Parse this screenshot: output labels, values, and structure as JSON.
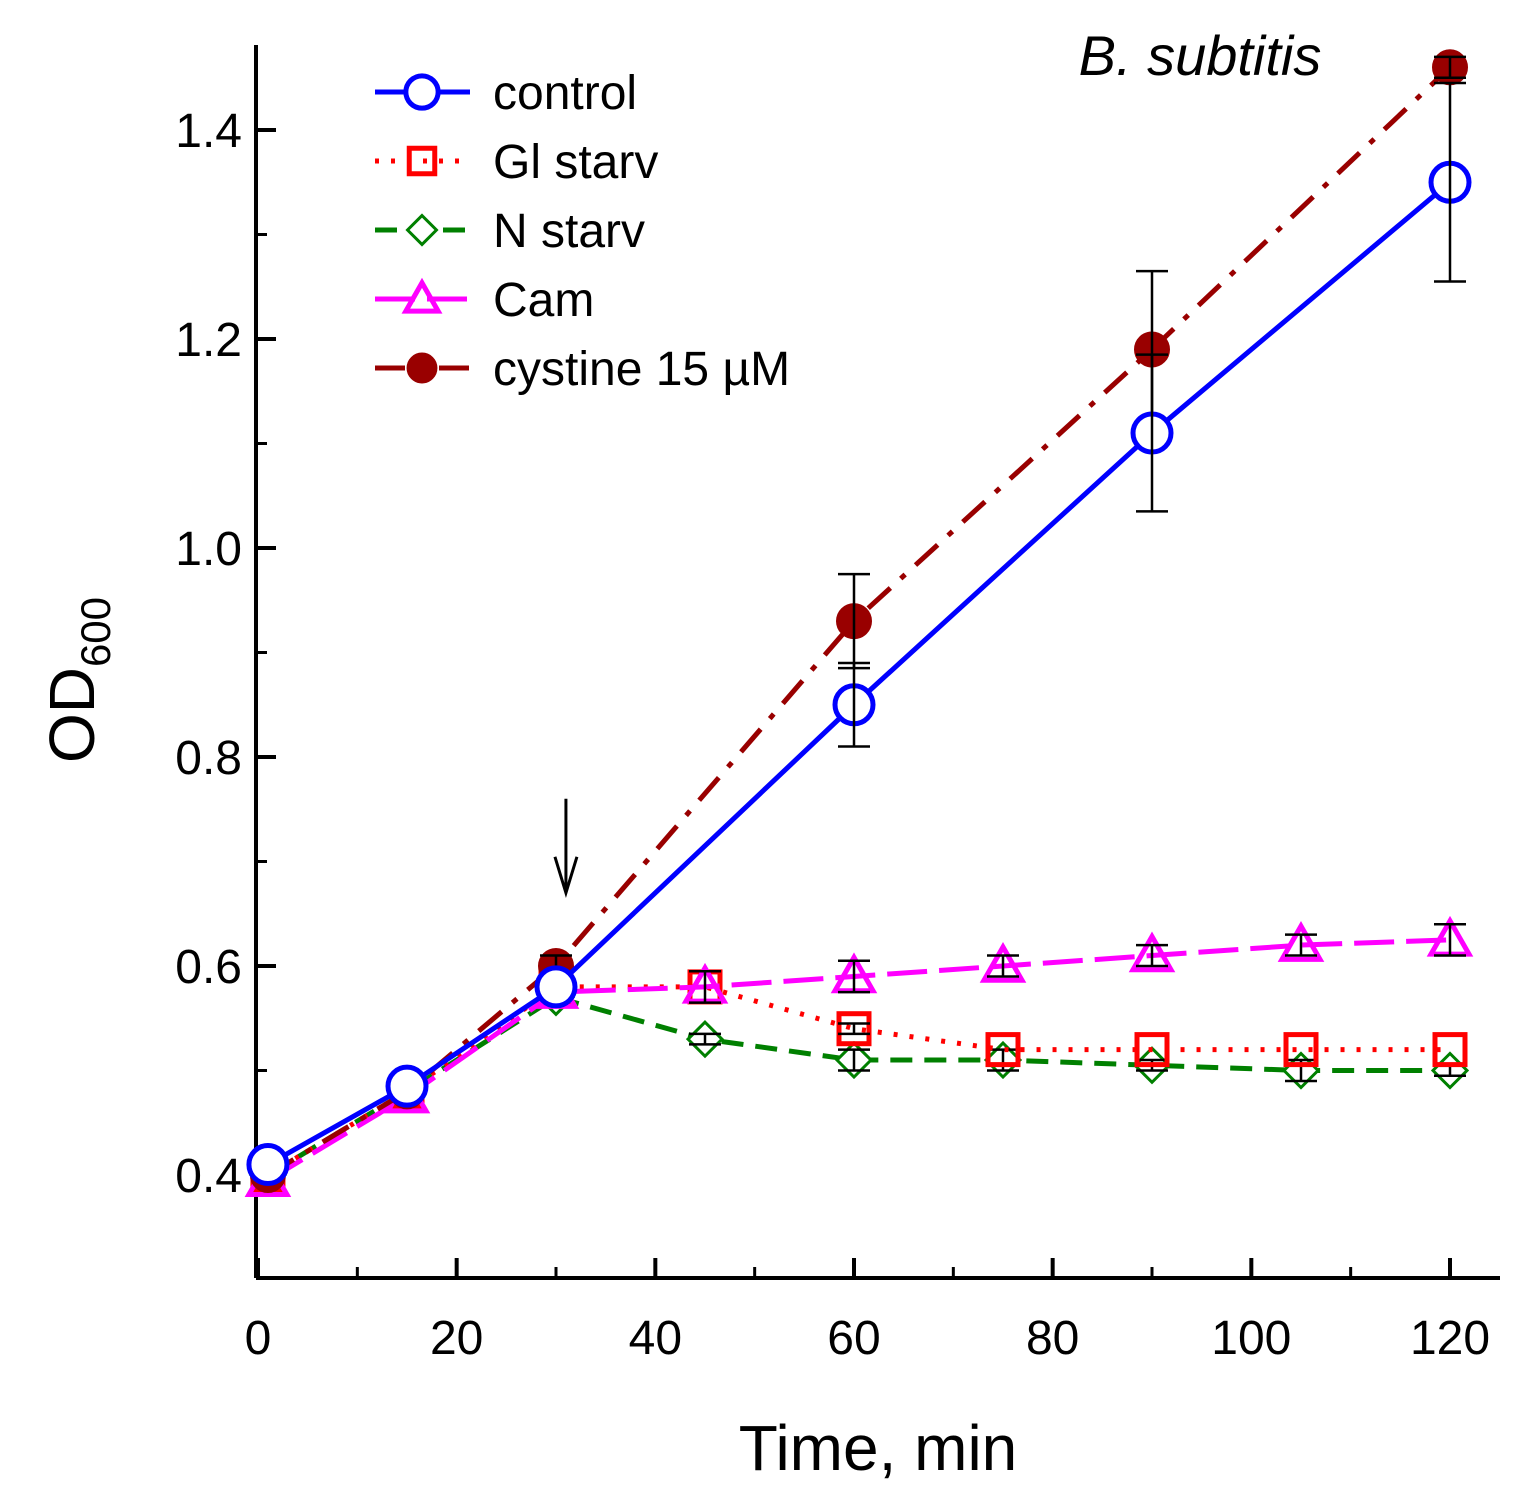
{
  "chart_data": {
    "type": "line",
    "annotation": "B. subtitis",
    "xlabel": "Time, min",
    "ylabel_main": "OD",
    "ylabel_sub": "600",
    "xlim": [
      0,
      125
    ],
    "ylim": [
      0.31,
      1.48
    ],
    "x_ticks": [
      0,
      20,
      40,
      60,
      80,
      100,
      120
    ],
    "x_minor_ticks": [
      10,
      30,
      50,
      70,
      90,
      110
    ],
    "y_ticks": [
      0.4,
      0.6,
      0.8,
      1.0,
      1.2,
      1.4
    ],
    "y_minor_ticks": [
      0.5,
      0.7,
      0.9,
      1.1,
      1.3
    ],
    "x_tick_labels": [
      "0",
      "20",
      "40",
      "60",
      "80",
      "100",
      "120"
    ],
    "y_tick_labels": [
      "0.4",
      "0.6",
      "0.8",
      "1.0",
      "1.2",
      "1.4"
    ],
    "arrow_at": {
      "x": 31,
      "y_top": 0.76,
      "y_bottom": 0.67
    },
    "series": [
      {
        "name": "control",
        "color": "#0000ff",
        "dash": "",
        "marker": "circle-open",
        "x": [
          1,
          15,
          30,
          60,
          90,
          120
        ],
        "y": [
          0.41,
          0.485,
          0.58,
          0.85,
          1.11,
          1.35
        ],
        "err": [
          0,
          0,
          0,
          0.04,
          0.075,
          0.095
        ]
      },
      {
        "name": "Gl starv",
        "color": "#ff0000",
        "dash": "4,12",
        "marker": "square-open",
        "x": [
          1,
          15,
          30,
          45,
          60,
          75,
          90,
          105,
          120
        ],
        "y": [
          0.4,
          0.48,
          0.58,
          0.58,
          0.54,
          0.52,
          0.52,
          0.52,
          0.52
        ],
        "err": [
          0,
          0,
          0,
          0,
          0.005,
          0,
          0,
          0,
          0
        ]
      },
      {
        "name": "N starv",
        "color": "#008000",
        "dash": "22,12",
        "marker": "diamond-open",
        "x": [
          1,
          15,
          30,
          45,
          60,
          75,
          90,
          105,
          120
        ],
        "y": [
          0.4,
          0.48,
          0.57,
          0.53,
          0.51,
          0.51,
          0.505,
          0.5,
          0.5
        ],
        "err": [
          0.01,
          0,
          0,
          0.005,
          0.01,
          0.01,
          0.005,
          0.01,
          0.005
        ]
      },
      {
        "name": "Cam",
        "color": "#ff00ff",
        "dash": "40,12",
        "marker": "triangle-open",
        "x": [
          1,
          15,
          30,
          45,
          60,
          75,
          90,
          105,
          120
        ],
        "y": [
          0.395,
          0.475,
          0.575,
          0.58,
          0.59,
          0.6,
          0.61,
          0.62,
          0.625
        ],
        "err": [
          0,
          0,
          0,
          0.015,
          0.015,
          0.01,
          0.01,
          0.01,
          0.015
        ]
      },
      {
        "name": "cystine 15 µM",
        "color": "#990000",
        "dash": "30,14,6,14",
        "marker": "circle-filled",
        "x": [
          1,
          15,
          30,
          60,
          90,
          120
        ],
        "y": [
          0.4,
          0.48,
          0.6,
          0.93,
          1.19,
          1.46
        ],
        "err": [
          0,
          0,
          0.01,
          0.045,
          0.075,
          0.01
        ]
      }
    ]
  }
}
